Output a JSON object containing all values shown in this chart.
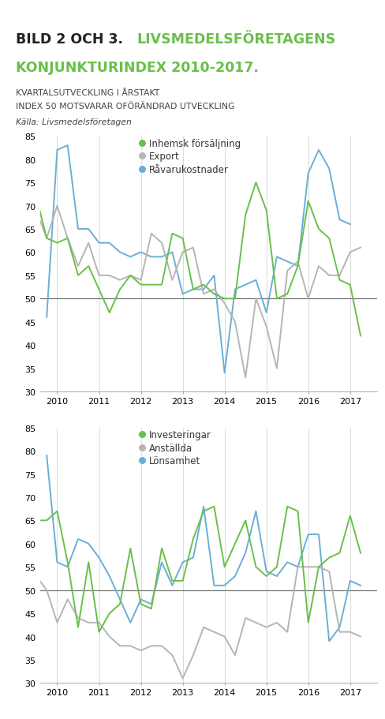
{
  "title_bild_black": "BILD 2 OCH 3. ",
  "title_bild_green": "LIVSMEDELSFÖRETAGENS",
  "title_line2": "KONJUNKTURINDEX 2010-2017.",
  "subtitle1": "KVARTALSUTVECKLING I ÅRSTAKT",
  "subtitle2": "INDEX 50 MOTSVARAR OFÖRÄNDRAD UTVECKLING",
  "source": "Källa: Livsmedelsföretagen",
  "top_bar_color": "#6abf4b",
  "x_values": [
    2009.5,
    2009.75,
    2010.0,
    2010.25,
    2010.5,
    2010.75,
    2011.0,
    2011.25,
    2011.5,
    2011.75,
    2012.0,
    2012.25,
    2012.5,
    2012.75,
    2013.0,
    2013.25,
    2013.5,
    2013.75,
    2014.0,
    2014.25,
    2014.5,
    2014.75,
    2015.0,
    2015.25,
    2015.5,
    2015.75,
    2016.0,
    2016.25,
    2016.5,
    2016.75,
    2017.0,
    2017.25,
    2017.5
  ],
  "chart1": {
    "inhemsk": [
      72,
      63,
      62,
      63,
      55,
      57,
      52,
      47,
      52,
      55,
      53,
      53,
      53,
      64,
      63,
      52,
      53,
      51,
      50,
      50,
      68,
      75,
      69,
      50,
      51,
      57,
      71,
      65,
      63,
      54,
      53,
      42,
      null
    ],
    "export": [
      69,
      63,
      70,
      63,
      57,
      62,
      55,
      55,
      54,
      55,
      54,
      64,
      62,
      54,
      60,
      61,
      51,
      52,
      49,
      45,
      33,
      50,
      44,
      35,
      56,
      58,
      50,
      57,
      55,
      55,
      60,
      61,
      null
    ],
    "ravarukostnader": [
      null,
      46,
      82,
      83,
      65,
      65,
      62,
      62,
      60,
      59,
      60,
      59,
      59,
      60,
      51,
      52,
      52,
      55,
      34,
      52,
      53,
      54,
      47,
      59,
      58,
      57,
      77,
      82,
      78,
      67,
      66,
      null,
      null
    ]
  },
  "chart2": {
    "investeringar": [
      65,
      65,
      67,
      56,
      42,
      56,
      41,
      45,
      47,
      59,
      47,
      46,
      59,
      52,
      52,
      61,
      67,
      68,
      55,
      60,
      65,
      55,
      53,
      55,
      68,
      67,
      43,
      55,
      57,
      58,
      66,
      58,
      null
    ],
    "anstallda": [
      53,
      50,
      43,
      48,
      44,
      43,
      43,
      40,
      38,
      38,
      37,
      38,
      38,
      36,
      31,
      36,
      42,
      41,
      40,
      36,
      44,
      43,
      42,
      43,
      41,
      55,
      55,
      55,
      54,
      41,
      41,
      40,
      null
    ],
    "lonsamhet": [
      null,
      79,
      56,
      55,
      61,
      60,
      57,
      53,
      48,
      43,
      48,
      47,
      56,
      51,
      56,
      57,
      68,
      51,
      51,
      53,
      58,
      67,
      54,
      53,
      56,
      55,
      62,
      62,
      39,
      42,
      52,
      51,
      null
    ]
  },
  "color_green": "#6abf4b",
  "color_gray": "#b5b5b5",
  "color_blue": "#6baed6",
  "ylim": [
    30,
    85
  ],
  "yticks": [
    30,
    35,
    40,
    45,
    50,
    55,
    60,
    65,
    70,
    75,
    80,
    85
  ],
  "xticks": [
    2010,
    2011,
    2012,
    2013,
    2014,
    2015,
    2016,
    2017
  ],
  "reference_line": 50,
  "xlim_left": 2009.6,
  "xlim_right": 2017.65
}
